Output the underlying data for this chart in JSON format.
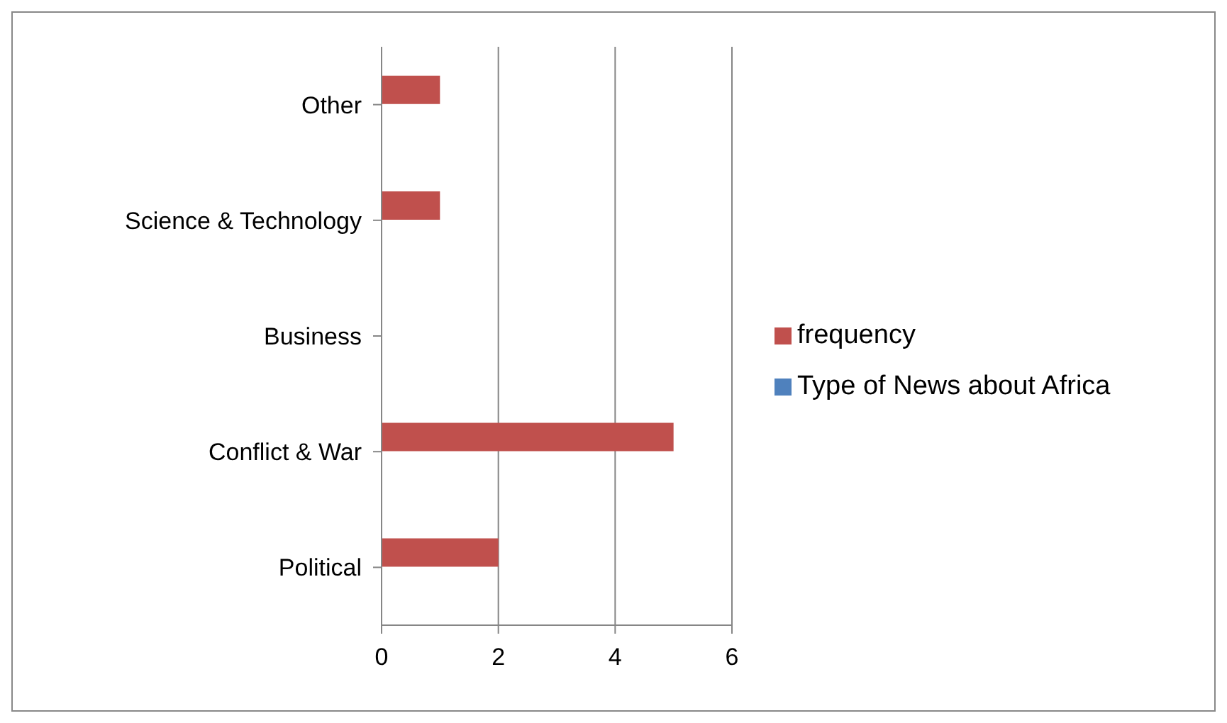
{
  "chart_data": {
    "type": "bar",
    "orientation": "horizontal",
    "categories": [
      "Other",
      "Science & Technology",
      "Business",
      "Conflict & War",
      "Political"
    ],
    "series": [
      {
        "name": "frequency",
        "color": "#c0504d",
        "values": [
          1,
          1,
          0,
          5,
          2
        ]
      },
      {
        "name": "Type of News about Africa",
        "color": "#4f81bd",
        "values": [
          null,
          null,
          null,
          null,
          null
        ]
      }
    ],
    "xlim": [
      0,
      6
    ],
    "xticks": [
      0,
      2,
      4,
      6
    ],
    "grid": "x",
    "legend": "right"
  }
}
